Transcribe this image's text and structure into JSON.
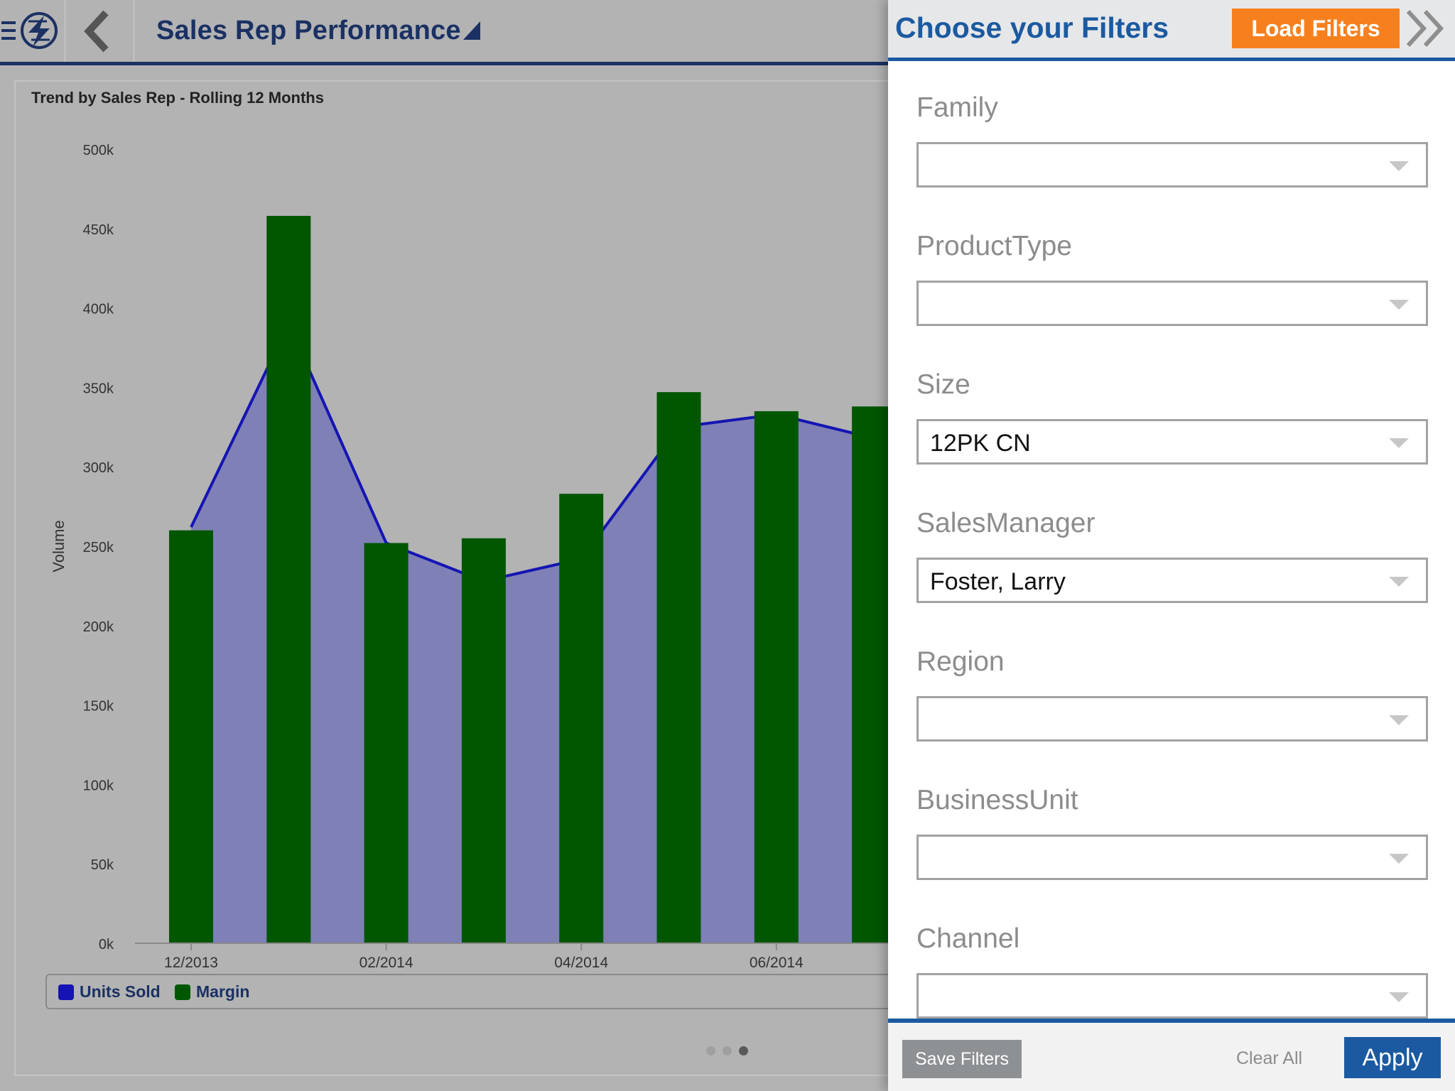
{
  "header": {
    "title": "Sales Rep Performance",
    "menu_icon": "menu-logo-icon",
    "back_icon": "chevron-left-icon"
  },
  "chart_data": {
    "type": "bar",
    "title": "Trend by Sales Rep - Rolling 12 Months",
    "xlabel": "",
    "ylabel": "Volume",
    "ylim": [
      0,
      500000
    ],
    "yticks": [
      "0k",
      "50k",
      "100k",
      "150k",
      "200k",
      "250k",
      "300k",
      "350k",
      "400k",
      "450k",
      "500k"
    ],
    "xtick_labels": [
      "12/2013",
      "02/2014",
      "04/2014",
      "06/2014"
    ],
    "categories": [
      "12/2013",
      "01/2014",
      "02/2014",
      "03/2014",
      "04/2014",
      "05/2014",
      "06/2014",
      "07/2014"
    ],
    "series": [
      {
        "name": "Units Sold",
        "type": "area",
        "values": [
          262000,
          390000,
          252000,
          228000,
          242000,
          325000,
          333000,
          318000
        ]
      },
      {
        "name": "Margin",
        "type": "bar",
        "values": [
          260000,
          458000,
          252000,
          255000,
          283000,
          347000,
          335000,
          338000
        ]
      }
    ],
    "legend": [
      "Units Sold",
      "Margin"
    ],
    "legend_position": "bottom",
    "colors": {
      "Units Sold": "#1414b4",
      "Units Sold Fill": "#7f80b6",
      "Margin": "#005700"
    }
  },
  "pager": {
    "pages": 3,
    "active": 3
  },
  "filters": {
    "title": "Choose your Filters",
    "load_label": "Load Filters",
    "items": [
      {
        "label": "Family",
        "value": ""
      },
      {
        "label": "ProductType",
        "value": ""
      },
      {
        "label": "Size",
        "value": "12PK CN"
      },
      {
        "label": "SalesManager",
        "value": "Foster, Larry"
      },
      {
        "label": "Region",
        "value": ""
      },
      {
        "label": "BusinessUnit",
        "value": ""
      },
      {
        "label": "Channel",
        "value": ""
      }
    ],
    "save_label": "Save Filters",
    "clear_label": "Clear All",
    "apply_label": "Apply"
  },
  "colors": {
    "accent": "#1b5aa0",
    "orange": "#f7801e",
    "navy": "#1b3163"
  }
}
